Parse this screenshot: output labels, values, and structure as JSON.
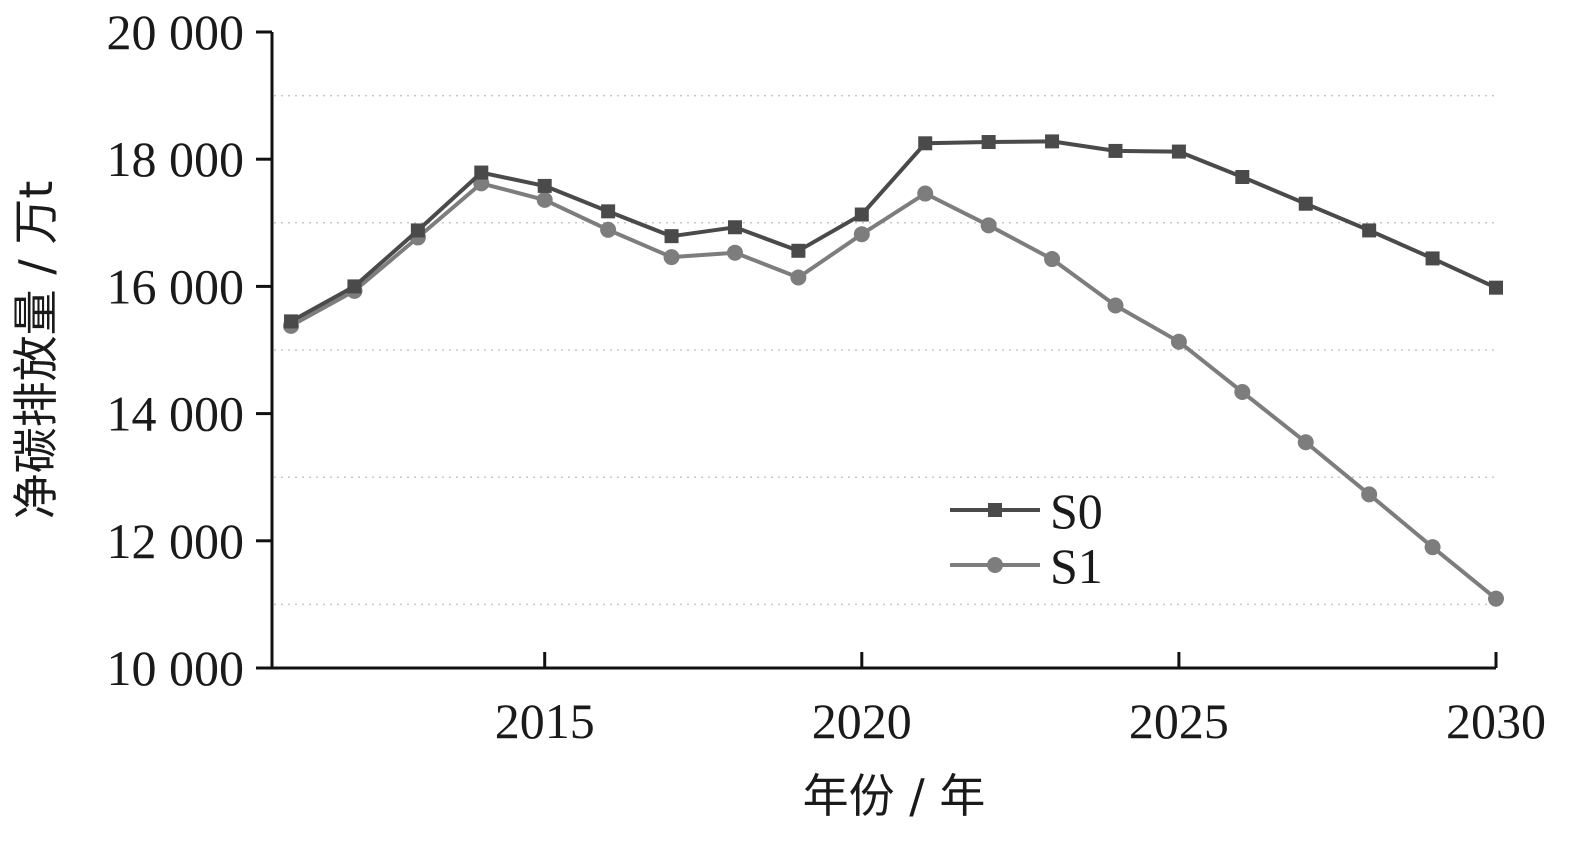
{
  "chart_data": {
    "type": "line",
    "title": "",
    "xlabel": "年份 / 年",
    "ylabel": "净碳排放量 / 万t",
    "x": [
      2011,
      2012,
      2013,
      2014,
      2015,
      2016,
      2017,
      2018,
      2019,
      2020,
      2021,
      2022,
      2023,
      2024,
      2025,
      2026,
      2027,
      2028,
      2029,
      2030
    ],
    "x_ticks": [
      2015,
      2020,
      2025,
      2030
    ],
    "x_tick_labels": [
      "2015",
      "2020",
      "2025",
      "2030"
    ],
    "xlim": [
      2010.7,
      2030
    ],
    "ylim": [
      10000,
      20000
    ],
    "y_ticks": [
      10000,
      12000,
      14000,
      16000,
      18000,
      20000
    ],
    "y_tick_labels": [
      "10 000",
      "12 000",
      "14 000",
      "16 000",
      "18 000",
      "20 000"
    ],
    "grid": "dotted horizontal",
    "legend_position": "center-right",
    "series": [
      {
        "name": "S0",
        "marker": "square",
        "color": "#4a4a4a",
        "values": [
          15450,
          16000,
          16880,
          17790,
          17580,
          17180,
          16790,
          16930,
          16560,
          17130,
          18250,
          18270,
          18280,
          18130,
          18120,
          17720,
          17300,
          16880,
          16440,
          15980
        ]
      },
      {
        "name": "S1",
        "marker": "circle",
        "color": "#7d7d7d",
        "values": [
          15380,
          15930,
          16770,
          17620,
          17360,
          16890,
          16460,
          16530,
          16140,
          16820,
          17460,
          16960,
          16430,
          15700,
          15130,
          14340,
          13550,
          12730,
          11900,
          11090
        ]
      }
    ]
  }
}
